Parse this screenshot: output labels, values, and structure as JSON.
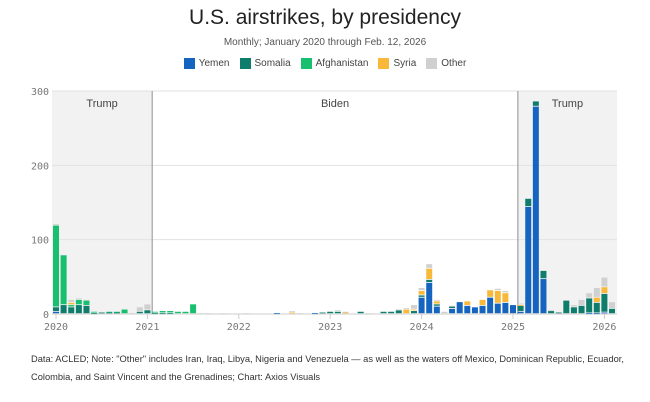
{
  "chart_data": {
    "type": "bar",
    "stacked": true,
    "title": "U.S. airstrikes, by presidency",
    "subtitle": "Monthly; January 2020 through Feb. 12, 2026",
    "x_start": "2020-01",
    "x_end": "2026-02",
    "x_tick_labels": [
      "2020",
      "2021",
      "2022",
      "2023",
      "2024",
      "2025",
      "2026"
    ],
    "y_tick_labels": [
      "0",
      "100",
      "200",
      "300"
    ],
    "ylim": [
      0,
      300
    ],
    "grid": "horizontal",
    "legend_position": "top",
    "periods": [
      {
        "label": "Trump",
        "start": "2020-01",
        "end": "2021-01-20",
        "shaded": true
      },
      {
        "label": "Biden",
        "start": "2021-01-20",
        "end": "2025-01-20",
        "shaded": false
      },
      {
        "label": "Trump",
        "start": "2025-01-20",
        "end": "2026-02",
        "shaded": true
      }
    ],
    "series": [
      {
        "name": "Yemen",
        "color": "#1565c0"
      },
      {
        "name": "Somalia",
        "color": "#0e7d6c"
      },
      {
        "name": "Afghanistan",
        "color": "#17bf6e"
      },
      {
        "name": "Syria",
        "color": "#f8b93b"
      },
      {
        "name": "Other",
        "color": "#d0d0d0"
      }
    ],
    "months": [
      [
        3,
        6,
        110,
        0,
        2
      ],
      [
        0,
        12,
        67,
        0,
        0
      ],
      [
        0,
        9,
        3,
        3,
        4
      ],
      [
        0,
        12,
        7,
        0,
        2
      ],
      [
        0,
        11,
        7,
        0,
        1
      ],
      [
        0,
        1,
        2,
        0,
        0
      ],
      [
        0,
        2,
        0,
        0,
        0
      ],
      [
        0,
        2,
        1,
        0,
        0
      ],
      [
        0,
        2,
        1,
        0,
        0
      ],
      [
        0,
        0,
        6,
        0,
        0
      ],
      [
        0,
        0,
        0,
        0,
        1
      ],
      [
        0,
        3,
        0,
        0,
        6
      ],
      [
        0,
        5,
        0,
        0,
        8
      ],
      [
        0,
        1,
        2,
        0,
        0
      ],
      [
        0,
        1,
        3,
        0,
        0
      ],
      [
        0,
        1,
        3,
        0,
        0
      ],
      [
        0,
        0,
        3,
        0,
        0
      ],
      [
        0,
        0,
        3,
        0,
        0
      ],
      [
        0,
        0,
        13,
        0,
        0
      ],
      [
        0,
        0,
        0,
        0,
        1
      ],
      [
        0,
        0,
        0,
        0,
        1
      ],
      [
        0,
        0,
        0,
        0,
        0
      ],
      [
        0,
        0,
        0,
        0,
        1
      ],
      [
        0,
        0,
        0,
        0,
        0
      ],
      [
        0,
        0,
        0,
        0,
        0
      ],
      [
        0,
        0,
        0,
        0,
        1
      ],
      [
        0,
        0,
        0,
        0,
        0
      ],
      [
        0,
        0,
        0,
        0,
        0
      ],
      [
        0,
        0,
        0,
        0,
        0
      ],
      [
        1,
        0,
        0,
        0,
        0
      ],
      [
        0,
        0,
        0,
        0,
        0
      ],
      [
        0,
        0,
        0,
        2,
        2
      ],
      [
        0,
        0,
        0,
        0,
        1
      ],
      [
        0,
        0,
        0,
        0,
        0
      ],
      [
        1,
        0,
        0,
        0,
        0
      ],
      [
        0,
        2,
        0,
        0,
        0
      ],
      [
        0,
        3,
        0,
        0,
        0
      ],
      [
        0,
        3,
        0,
        0,
        2
      ],
      [
        0,
        0,
        0,
        2,
        1
      ],
      [
        0,
        0,
        0,
        0,
        0
      ],
      [
        0,
        3,
        0,
        0,
        0
      ],
      [
        0,
        0,
        0,
        0,
        1
      ],
      [
        0,
        0,
        0,
        0,
        0
      ],
      [
        0,
        3,
        0,
        0,
        0
      ],
      [
        0,
        3,
        0,
        0,
        0
      ],
      [
        0,
        5,
        0,
        0,
        1
      ],
      [
        0,
        0,
        0,
        6,
        2
      ],
      [
        0,
        4,
        0,
        2,
        6
      ],
      [
        22,
        3,
        0,
        6,
        4
      ],
      [
        42,
        4,
        0,
        15,
        6
      ],
      [
        10,
        3,
        0,
        4,
        2
      ],
      [
        0,
        0,
        0,
        0,
        3
      ],
      [
        7,
        3,
        0,
        0,
        1
      ],
      [
        16,
        0,
        0,
        0,
        0
      ],
      [
        11,
        0,
        0,
        6,
        0
      ],
      [
        9,
        0,
        0,
        0,
        0
      ],
      [
        11,
        0,
        0,
        8,
        0
      ],
      [
        22,
        0,
        0,
        10,
        0
      ],
      [
        14,
        0,
        0,
        17,
        3
      ],
      [
        15,
        0,
        0,
        13,
        3
      ],
      [
        12,
        0,
        0,
        0,
        0
      ],
      [
        3,
        8,
        0,
        1,
        2
      ],
      [
        144,
        11,
        0,
        0,
        0
      ],
      [
        279,
        7,
        0,
        0,
        0
      ],
      [
        47,
        11,
        0,
        0,
        0
      ],
      [
        0,
        4,
        0,
        0,
        1
      ],
      [
        0,
        2,
        0,
        0,
        0
      ],
      [
        0,
        18,
        0,
        0,
        0
      ],
      [
        0,
        9,
        0,
        0,
        3
      ],
      [
        0,
        11,
        0,
        0,
        8
      ],
      [
        1,
        20,
        0,
        0,
        7
      ],
      [
        1,
        14,
        0,
        7,
        13
      ],
      [
        2,
        25,
        0,
        9,
        13
      ],
      [
        0,
        7,
        0,
        0,
        9
      ]
    ]
  },
  "footnote": {
    "line1": "Data: ACLED; Note: \"Other\" includes Iran, Iraq, Libya, Nigeria and Venezuela — as well as the waters off Mexico, Dominican Republic, Ecuador,",
    "line2": "Colombia, and Saint Vincent and the Grenadines; Chart: Axios Visuals"
  }
}
